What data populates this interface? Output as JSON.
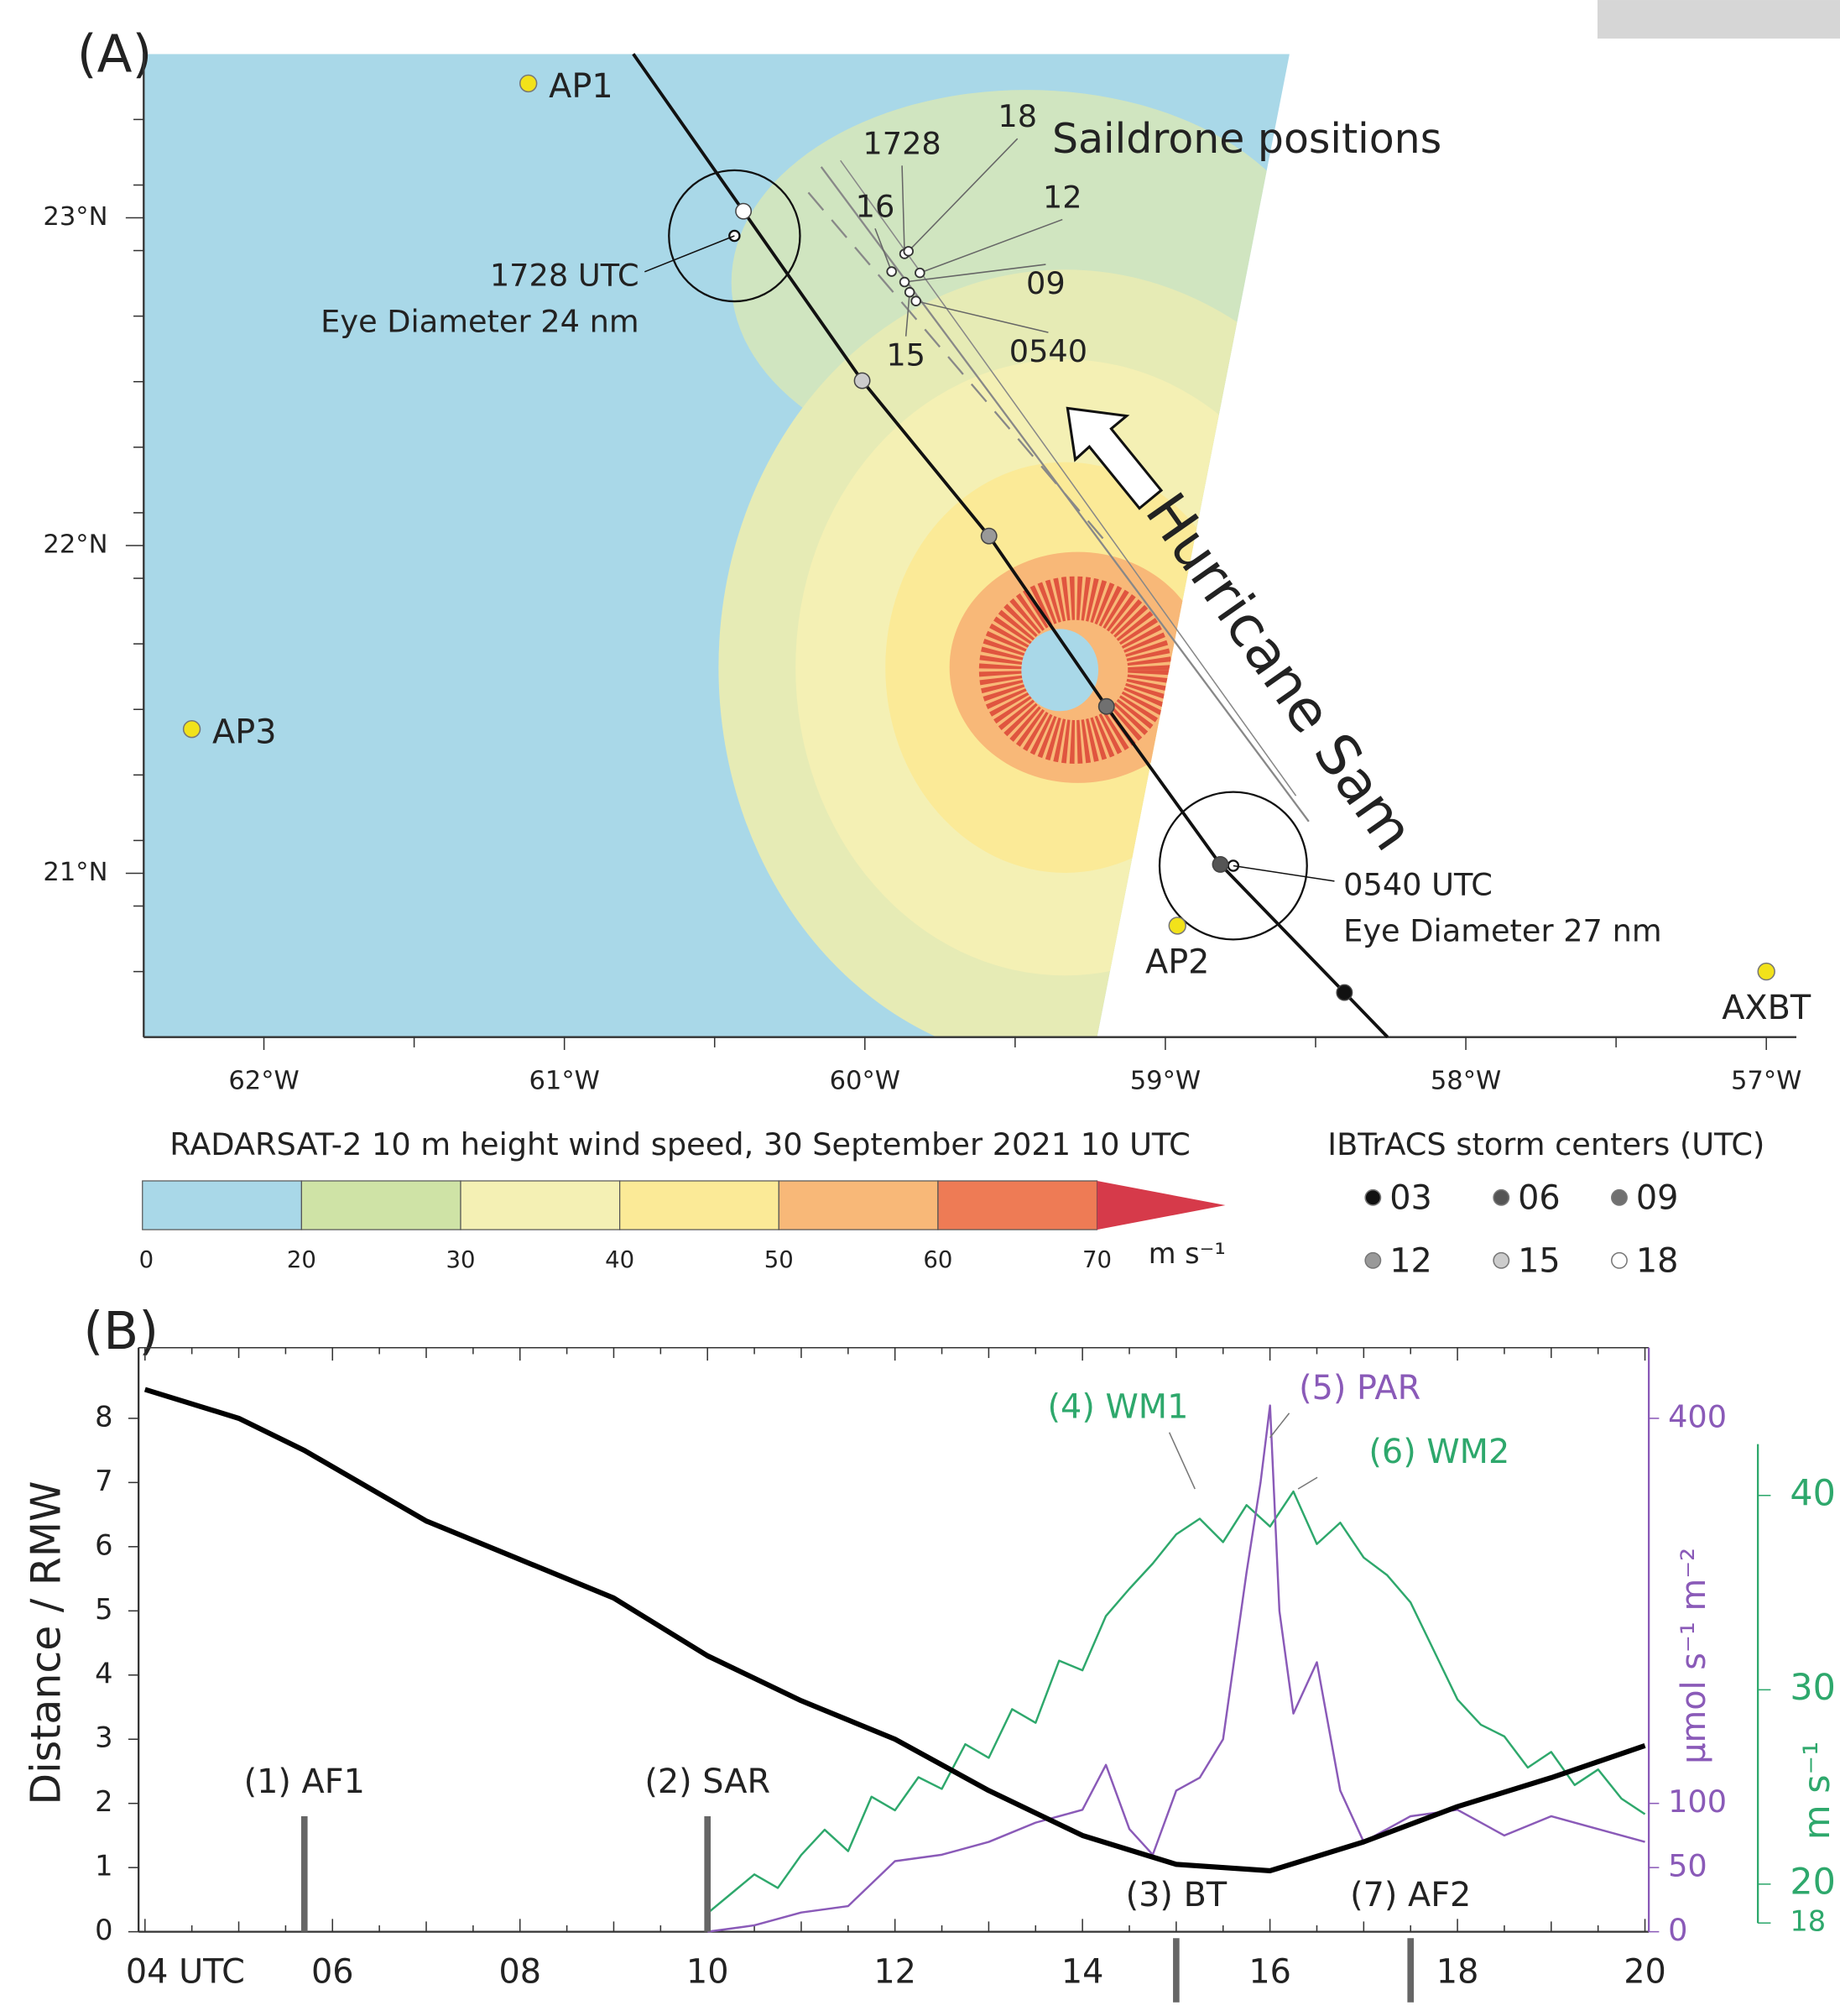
{
  "chart_data": [
    {
      "type": "map",
      "panel_label": "(A)",
      "xlim": [
        -62.4,
        -56.9
      ],
      "ylim": [
        20.5,
        23.5
      ],
      "xticks": [
        {
          "value": -62,
          "label": "62°W"
        },
        {
          "value": -61,
          "label": "61°W"
        },
        {
          "value": -60,
          "label": "60°W"
        },
        {
          "value": -59,
          "label": "59°W"
        },
        {
          "value": -58,
          "label": "58°W"
        },
        {
          "value": -57,
          "label": "57°W"
        }
      ],
      "yticks": [
        {
          "value": 21,
          "label": "21°N"
        },
        {
          "value": 22,
          "label": "22°N"
        },
        {
          "value": 23,
          "label": "23°N"
        }
      ],
      "stations": [
        {
          "label": "AP1",
          "lon": -61.12,
          "lat": 23.41,
          "color": "#f2e21a"
        },
        {
          "label": "AP2",
          "lon": -58.96,
          "lat": 20.84,
          "color": "#f2e21a"
        },
        {
          "label": "AP3",
          "lon": -62.24,
          "lat": 21.44,
          "color": "#f2e21a"
        },
        {
          "label": "AXBT",
          "lon": -57.0,
          "lat": 20.7,
          "color": "#f2e21a"
        }
      ],
      "saildrone": {
        "title": "Saildrone positions",
        "points": [
          {
            "label": "1728",
            "lon": -59.868,
            "lat": 22.89
          },
          {
            "label": "18",
            "lon": -59.855,
            "lat": 22.898
          },
          {
            "label": "16",
            "lon": -59.911,
            "lat": 22.836
          },
          {
            "label": "12",
            "lon": -59.817,
            "lat": 22.832
          },
          {
            "label": "09",
            "lon": -59.868,
            "lat": 22.804
          },
          {
            "label": "0540",
            "lon": -59.83,
            "lat": 22.746
          },
          {
            "label": "15",
            "lon": -59.851,
            "lat": 22.773
          }
        ]
      },
      "storm_label": "Hurricane Sam",
      "eyes": [
        {
          "label": "1728 UTC",
          "note": "Eye Diameter 24 nm",
          "lon": -60.434,
          "lat": 22.945,
          "diameter_nm": 24
        },
        {
          "label": "0540 UTC",
          "note": "Eye Diameter 27 nm",
          "lon": -58.774,
          "lat": 21.023,
          "diameter_nm": 27
        }
      ],
      "colorbar": {
        "title": "RADARSAT-2 10 m height wind speed, 30 September 2021 10 UTC",
        "bins": [
          0,
          20,
          30,
          40,
          50,
          60,
          70
        ],
        "colors": [
          "#a9d8e8",
          "#cfe3a6",
          "#f4f0b4",
          "#fbea97",
          "#f8b878",
          "#ee7b55",
          "#d63a4a"
        ],
        "unit": "m s⁻¹"
      },
      "storm_centers": {
        "title": "IBTrACS storm centers (UTC)",
        "items": [
          {
            "label": "03",
            "color": "#111111",
            "lon": -58.404,
            "lat": 20.636
          },
          {
            "label": "06",
            "color": "#555555",
            "lon": -58.817,
            "lat": 21.027
          },
          {
            "label": "09",
            "color": "#707070",
            "lon": -59.196,
            "lat": 21.509
          },
          {
            "label": "12",
            "color": "#999999",
            "lon": -59.587,
            "lat": 22.029
          },
          {
            "label": "15",
            "color": "#cccccc",
            "lon": -60.009,
            "lat": 22.503
          },
          {
            "label": "18",
            "color": "#ffffff",
            "lon": -60.404,
            "lat": 23.02
          }
        ]
      }
    },
    {
      "type": "line",
      "panel_label": "(B)",
      "xlim": [
        4,
        20
      ],
      "ylim": [
        0,
        9.1
      ],
      "y2lim": [
        0,
        455
      ],
      "y3lim": [
        17.55,
        47.6
      ],
      "xticks": [
        {
          "value": 4,
          "label": "04 UTC"
        },
        {
          "value": 6,
          "label": "06"
        },
        {
          "value": 8,
          "label": "08"
        },
        {
          "value": 10,
          "label": "10"
        },
        {
          "value": 12,
          "label": "12"
        },
        {
          "value": 14,
          "label": "14"
        },
        {
          "value": 16,
          "label": "16"
        },
        {
          "value": 18,
          "label": "18"
        },
        20
      ],
      "yticks": [
        0,
        1,
        2,
        3,
        4,
        5,
        6,
        7,
        8
      ],
      "y2ticks": [
        0,
        50,
        100,
        400
      ],
      "y3ticks": [
        18,
        20,
        30,
        40
      ],
      "ylabel": "Distance / RMW",
      "y2label": "μmol s⁻¹ m⁻²",
      "y3label": "m s⁻¹",
      "y2color": "#8a5ab8",
      "y3color": "#2ea86c",
      "series": [
        {
          "color": "#2ea86c",
          "axis": "y3",
          "x": [
            10,
            10.25,
            10.5,
            10.75,
            11,
            11.25,
            11.5,
            11.75,
            12,
            12.25,
            12.5,
            12.75,
            13,
            13.25,
            13.5,
            13.75,
            14,
            14.25,
            14.5,
            14.75,
            15,
            15.25,
            15.5,
            15.75,
            16,
            16.25,
            16.5,
            16.75,
            17,
            17.25,
            17.5,
            17.75,
            18,
            18.25,
            18.5,
            18.75,
            19,
            19.25,
            19.5,
            19.75,
            20
          ],
          "values": [
            18.5,
            19.5,
            20.5,
            19.8,
            21.5,
            22.8,
            21.7,
            24.5,
            23.8,
            25.5,
            24.9,
            27.2,
            26.5,
            29.0,
            28.3,
            31.5,
            31.0,
            33.8,
            35.2,
            36.5,
            38.0,
            38.8,
            37.6,
            39.5,
            38.4,
            40.2,
            37.5,
            38.6,
            36.8,
            35.9,
            34.5,
            32.0,
            29.5,
            28.2,
            27.6,
            26.0,
            26.8,
            25.1,
            25.9,
            24.4,
            23.6
          ]
        },
        {
          "color": "#8a5ab8",
          "axis": "y2",
          "x": [
            10,
            10.5,
            11,
            11.5,
            12,
            12.5,
            13,
            13.5,
            14,
            14.25,
            14.5,
            14.75,
            15,
            15.25,
            15.5,
            15.75,
            15.9,
            16,
            16.1,
            16.25,
            16.5,
            16.75,
            17,
            17.5,
            18,
            18.5,
            19,
            19.5,
            20
          ],
          "values": [
            0,
            5,
            15,
            20,
            55,
            60,
            70,
            85,
            95,
            130,
            80,
            60,
            110,
            120,
            150,
            280,
            350,
            410,
            250,
            170,
            210,
            110,
            70,
            90,
            95,
            75,
            90,
            80,
            70
          ]
        },
        {
          "color": "#000000",
          "axis": "y",
          "x": [
            4,
            5,
            5.7,
            7,
            8,
            9,
            10,
            11,
            12,
            13,
            14,
            15,
            16,
            17,
            18,
            19,
            20
          ],
          "values": [
            8.45,
            8.0,
            7.5,
            6.4,
            5.8,
            5.2,
            4.3,
            3.6,
            3.0,
            2.2,
            1.5,
            1.05,
            0.95,
            1.4,
            1.95,
            2.4,
            2.9
          ]
        }
      ],
      "events": [
        {
          "label": "(1) AF1",
          "x": 5.7
        },
        {
          "label": "(2) SAR",
          "x": 10
        },
        {
          "label": "(3) BT",
          "x": 15
        },
        {
          "label": "(7) AF2",
          "x": 17.5
        }
      ],
      "annotations": [
        {
          "label": "(4) WM1",
          "x": 15.2,
          "color": "#2ea86c"
        },
        {
          "label": "(5) PAR",
          "x": 16.0,
          "color": "#8a5ab8"
        },
        {
          "label": "(6) WM2",
          "x": 16.3,
          "color": "#2ea86c"
        }
      ]
    }
  ]
}
